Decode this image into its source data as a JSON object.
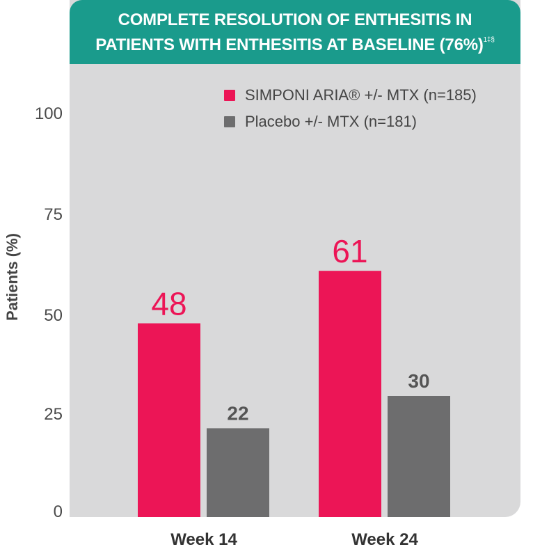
{
  "banner": {
    "line1": "COMPLETE RESOLUTION OF ENTHESITIS IN",
    "line2": "PATIENTS WITH ENTHESITIS AT BASELINE (76%)",
    "footnote": "1‡§"
  },
  "colors": {
    "simponi": "#ec1556",
    "placebo": "#6d6d6e",
    "banner": "#1a9b8c",
    "panel": "#d9d9da"
  },
  "chart_data": {
    "type": "bar",
    "title": "COMPLETE RESOLUTION OF ENTHESITIS IN PATIENTS WITH ENTHESITIS AT BASELINE (76%)",
    "ylabel": "Patients (%)",
    "xlabel": "",
    "categories": [
      "Week 14",
      "Week 24"
    ],
    "ylim": [
      0,
      100
    ],
    "yticks": [
      "0",
      "25",
      "50",
      "75",
      "100"
    ],
    "series": [
      {
        "name": "SIMPONI ARIA® +/- MTX (n=185)",
        "values": [
          48,
          61
        ],
        "labels": [
          "48",
          "61"
        ]
      },
      {
        "name": "Placebo +/- MTX (n=181)",
        "values": [
          22,
          30
        ],
        "labels": [
          "22",
          "30"
        ]
      }
    ],
    "grid": false,
    "legend_position": "top-right"
  }
}
